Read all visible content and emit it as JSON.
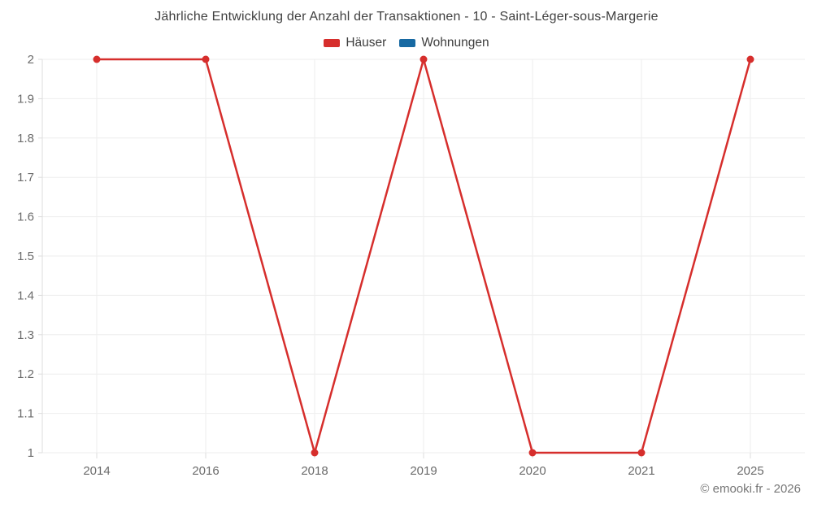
{
  "chart": {
    "title": "Jährliche Entwicklung der Anzahl der Transaktionen - 10 - Saint-Léger-sous-Margerie",
    "footer_copyright": "© emooki.fr - 2026"
  },
  "legend": {
    "items": [
      {
        "label": "Häuser",
        "color": "#d62e2c"
      },
      {
        "label": "Wohnungen",
        "color": "#1769a2"
      }
    ]
  },
  "chart_data": {
    "type": "line",
    "title": "Jährliche Entwicklung der Anzahl der Transaktionen - 10 - Saint-Léger-sous-Margerie",
    "categories": [
      "2014",
      "2016",
      "2018",
      "2019",
      "2020",
      "2021",
      "2025"
    ],
    "series": [
      {
        "name": "Häuser",
        "color": "#d62e2c",
        "values": [
          2,
          2,
          1,
          2,
          1,
          1,
          2
        ]
      },
      {
        "name": "Wohnungen",
        "color": "#1769a2",
        "values": []
      }
    ],
    "xlabel": "",
    "ylabel": "",
    "ylim": [
      1,
      2
    ],
    "ytick_step": 0.1,
    "ytick_labels": [
      "1",
      "1.1",
      "1.2",
      "1.3",
      "1.4",
      "1.5",
      "1.6",
      "1.7",
      "1.8",
      "1.9",
      "2"
    ],
    "grid": true,
    "legend_position": "top",
    "marker": "circle",
    "colors": {
      "grid_line": "#eeeeee",
      "axis_line": "#dddddd",
      "tick_text": "#6b6b6b"
    }
  }
}
